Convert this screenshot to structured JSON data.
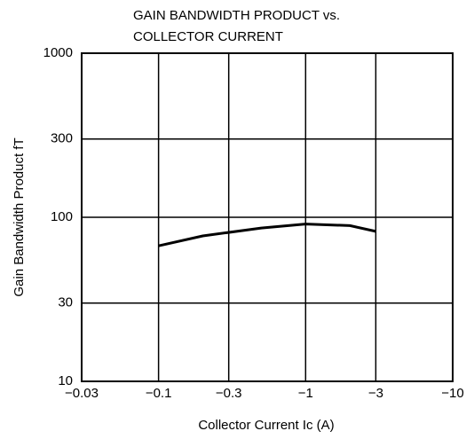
{
  "chart_data": {
    "type": "line",
    "title": [
      "GAIN BANDWIDTH PRODUCT vs.",
      "COLLECTOR CURRENT"
    ],
    "x_label": "Collector Current  Ic  (A)",
    "y_label": "Gain Bandwidth Product  fT",
    "x": [
      -0.1,
      -0.2,
      -0.5,
      -1,
      -2,
      -3
    ],
    "series": [
      {
        "name": "fT",
        "color": "#000000",
        "values": [
          67,
          77,
          86,
          91,
          89,
          82
        ]
      }
    ],
    "xlim": [
      -0.03,
      -10
    ],
    "xticks": [
      {
        "value": -0.03,
        "label": "−0.03"
      },
      {
        "value": -0.1,
        "label": "−0.1"
      },
      {
        "value": -0.3,
        "label": "−0.3"
      },
      {
        "value": -1,
        "label": "−1"
      },
      {
        "value": -3,
        "label": "−3"
      },
      {
        "value": -10,
        "label": "−10"
      }
    ],
    "ylim": [
      10,
      1000
    ],
    "yticks": [
      10,
      30,
      100,
      300,
      1000
    ],
    "x_log": true,
    "y_log": true,
    "grid": true
  }
}
